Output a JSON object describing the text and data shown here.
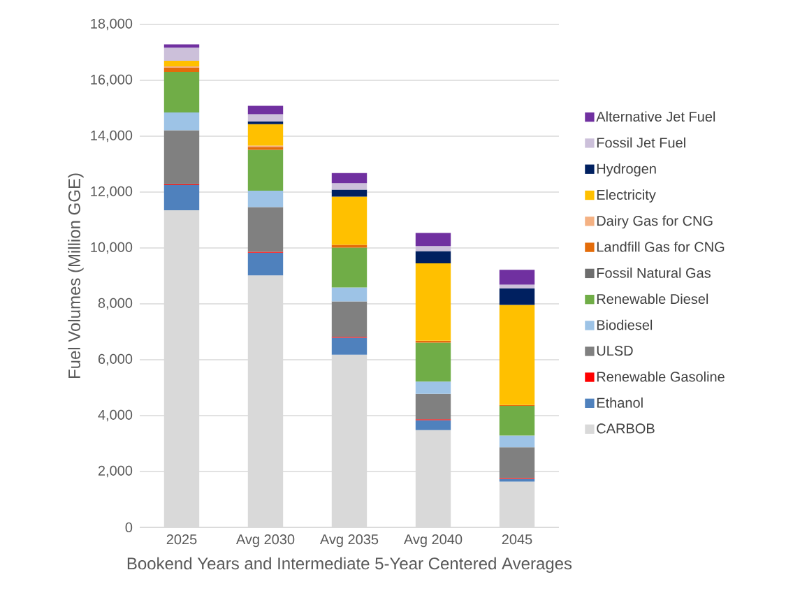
{
  "chart_data": {
    "type": "bar",
    "stacked": true,
    "xlabel": "Bookend Years and Intermediate 5-Year Centered Averages",
    "ylabel": "Fuel Volumes (Million GGE)",
    "categories": [
      "2025",
      "Avg 2030",
      "Avg 2035",
      "Avg 2040",
      "2045"
    ],
    "ylim": [
      0,
      18000
    ],
    "yticks": [
      {
        "value": 0,
        "label": "0"
      },
      {
        "value": 2000,
        "label": "2,000"
      },
      {
        "value": 4000,
        "label": "4,000"
      },
      {
        "value": 6000,
        "label": "6,000"
      },
      {
        "value": 8000,
        "label": "8,000"
      },
      {
        "value": 10000,
        "label": "10,000"
      },
      {
        "value": 12000,
        "label": "12,000"
      },
      {
        "value": 14000,
        "label": "14,000"
      },
      {
        "value": 16000,
        "label": "16,000"
      },
      {
        "value": 18000,
        "label": "18,000"
      }
    ],
    "grid": "y",
    "legend": "right",
    "series": [
      {
        "name": "CARBOB",
        "color": "#d9d9d9",
        "values": [
          11350,
          9020,
          6180,
          3480,
          1640
        ]
      },
      {
        "name": "Ethanol",
        "color": "#4f81bd",
        "values": [
          900,
          810,
          610,
          360,
          90
        ]
      },
      {
        "name": "Renewable Gasoline",
        "color": "#ff0000",
        "values": [
          30,
          30,
          30,
          30,
          30
        ]
      },
      {
        "name": "ULSD",
        "color": "#808080",
        "values": [
          1930,
          1600,
          1270,
          910,
          1110
        ]
      },
      {
        "name": "Biodiesel",
        "color": "#9dc3e6",
        "values": [
          640,
          590,
          500,
          440,
          420
        ]
      },
      {
        "name": "Renewable Diesel",
        "color": "#70ad47",
        "values": [
          1450,
          1460,
          1420,
          1390,
          1060
        ]
      },
      {
        "name": "Fossil Natural Gas",
        "color": "#6d6d6d",
        "values": [
          null,
          null,
          null,
          null,
          null
        ]
      },
      {
        "name": "Landfill Gas for CNG",
        "color": "#e46c0a",
        "values": [
          150,
          110,
          100,
          70,
          30
        ]
      },
      {
        "name": "Dairy Gas for CNG",
        "color": "#f4b183",
        "values": [
          50,
          40,
          null,
          null,
          null
        ]
      },
      {
        "name": "Electricity",
        "color": "#ffc000",
        "values": [
          200,
          770,
          1730,
          2770,
          3580
        ]
      },
      {
        "name": "Hydrogen",
        "color": "#002060",
        "values": [
          null,
          100,
          250,
          440,
          590
        ]
      },
      {
        "name": "Fossil Jet Fuel",
        "color": "#ccc0da",
        "values": [
          470,
          260,
          230,
          180,
          140
        ]
      },
      {
        "name": "Alternative Jet Fuel",
        "color": "#7030a0",
        "values": [
          120,
          300,
          360,
          470,
          530
        ]
      }
    ]
  }
}
